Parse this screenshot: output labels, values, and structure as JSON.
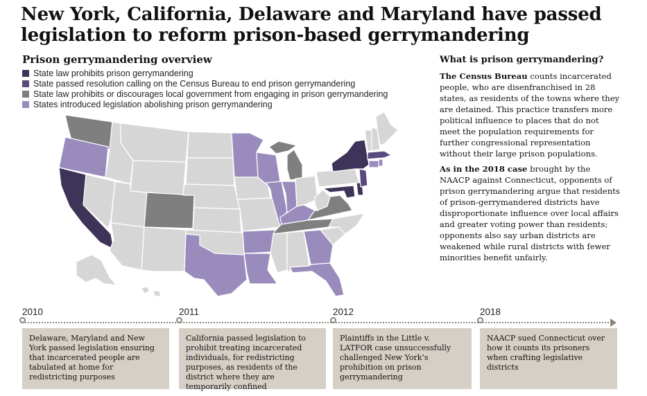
{
  "headline": "New York, California, Delaware and Maryland have passed legislation to reform prison-based gerrymandering",
  "map": {
    "heading": "Prison gerrymandering overview",
    "legend": [
      {
        "label": "State law prohibits prison gerrymandering",
        "color": "#3e3359"
      },
      {
        "label": "State passed resolution calling on the Census Bureau to end prison gerrymandering",
        "color": "#5a4b7d"
      },
      {
        "label": "State law prohibits or discourages local government from engaging in prison gerrymandering",
        "color": "#7f7f7f"
      },
      {
        "label": "States introduced legislation abolishing prison gerrymandering",
        "color": "#9a8bbd"
      }
    ],
    "default_color": "#d6d6d6",
    "categories": {
      "prohibits": [
        "California",
        "New York",
        "Delaware",
        "Maryland"
      ],
      "resolution": [
        "Massachusetts",
        "New Jersey"
      ],
      "local_gov": [
        "Colorado",
        "Michigan",
        "Tennessee",
        "Virginia",
        "Washington"
      ],
      "introduced": [
        "Oregon",
        "Minnesota",
        "Wisconsin",
        "Illinois",
        "Indiana",
        "Kentucky",
        "Texas",
        "Arkansas",
        "Louisiana",
        "Georgia",
        "Florida",
        "Rhode Island",
        "Connecticut"
      ]
    }
  },
  "sidebar": {
    "title": "What is prison gerrymandering?",
    "p1_lead": "The Census Bureau",
    "p1_body": " counts incarcerated people, who are disenfranchised in 28 states, as residents of the towns where they are detained. This practice transfers more political influence to places that do not meet the population requirements for further congressional representation without their large prison populations.",
    "p2_lead": "As in the 2018 case",
    "p2_body": " brought by the NAACP against Connecticut, opponents of prison gerrymandering argue that residents of prison-gerrymandered districts have disproportionate influence over local affairs and greater voting power than residents; opponents also say urban districts are weakened while rural districts with fewer minorities benefit unfairly."
  },
  "timeline": [
    {
      "year": "2010",
      "text": "Delaware, Maryland and New York passed legislation ensuring that incarcerated people are tabulated at home for redistricting purposes"
    },
    {
      "year": "2011",
      "text": "California passed legislation to prohibit treating incarcerated individuals, for redistricting purposes, as residents of the district where they are temporarily confined"
    },
    {
      "year": "2012",
      "text": "Plaintiffs in the Little v. LATFOR case unsuccessfully challenged New York’s prohibition on prison gerrymandering"
    },
    {
      "year": "2018",
      "text": "NAACP sued Connecticut over how it counts its prisoners when crafting legislative districts"
    }
  ]
}
